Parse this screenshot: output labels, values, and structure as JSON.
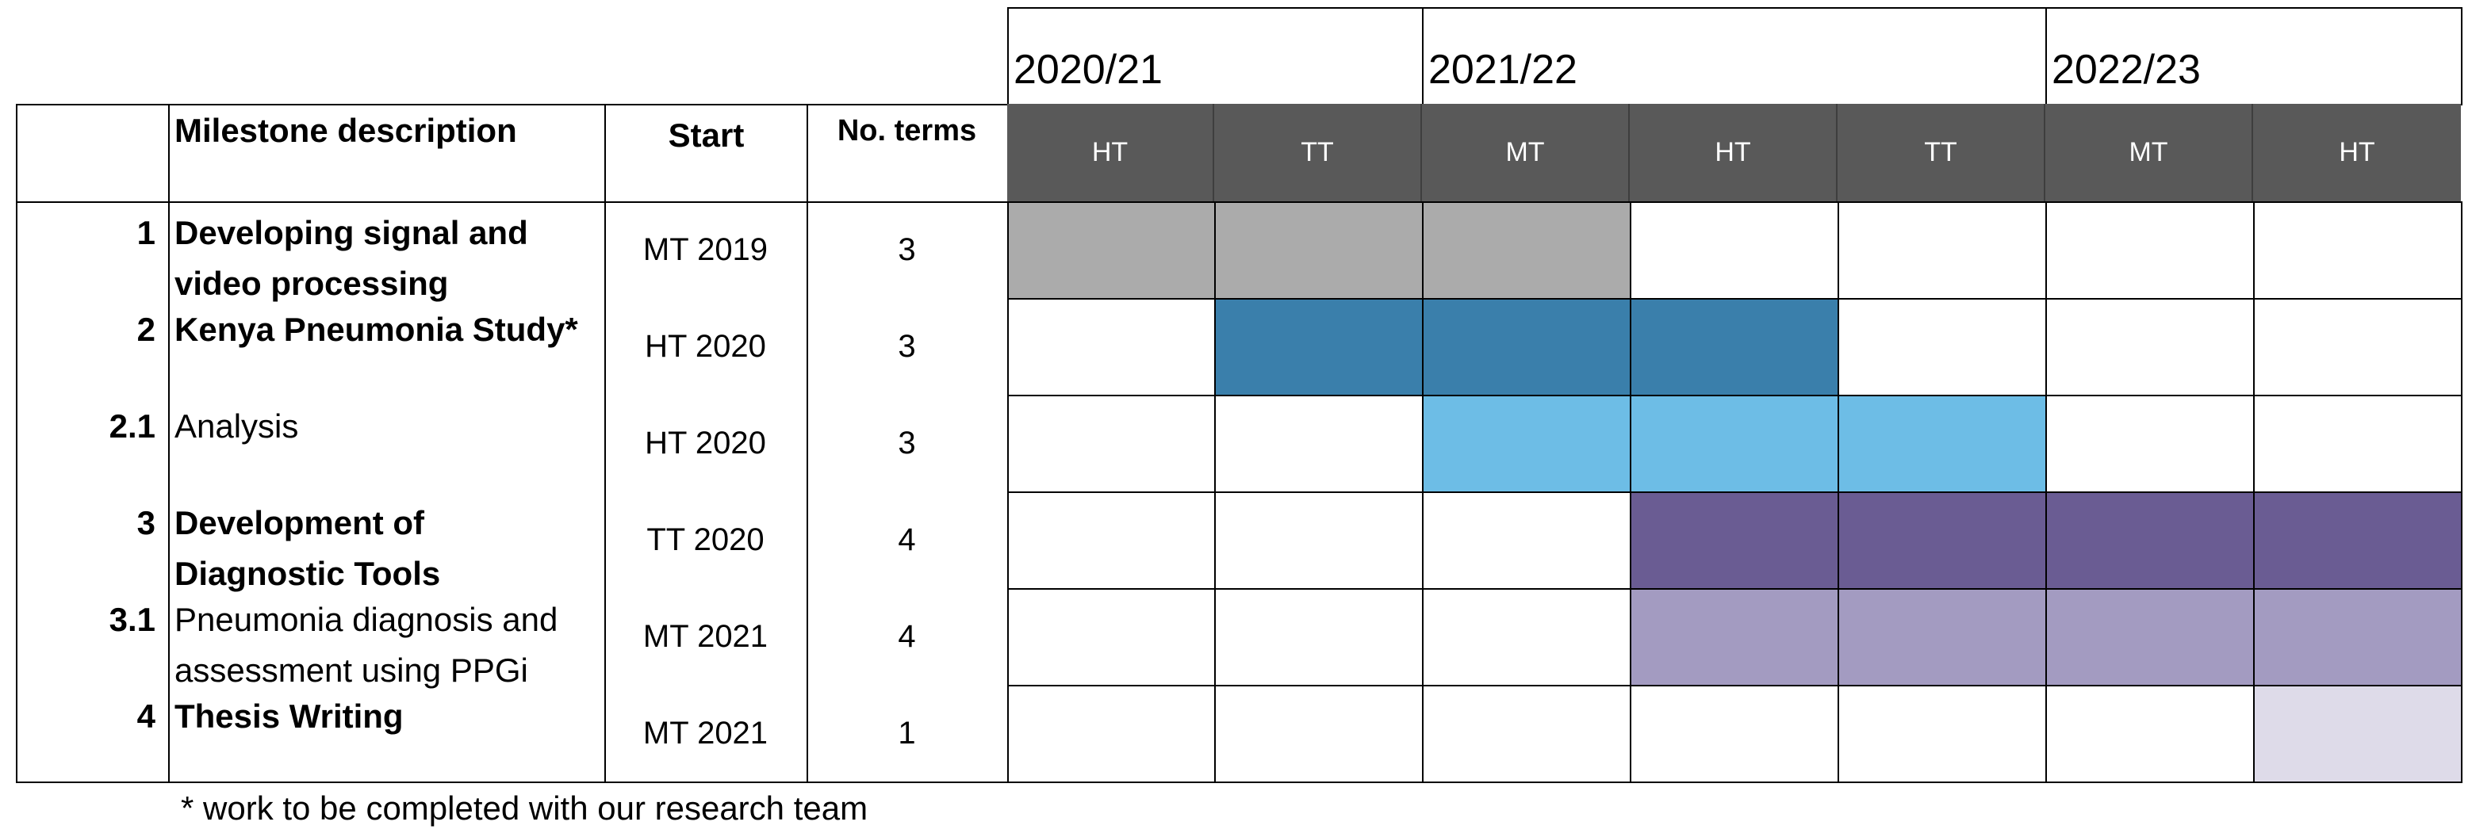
{
  "header": {
    "milestone_label": "Milestone description",
    "start_label": "Start",
    "terms_label": "No. terms"
  },
  "years": [
    {
      "label": "2020/21"
    },
    {
      "label": "2021/22"
    },
    {
      "label": "2022/23"
    }
  ],
  "terms": [
    {
      "label": "HT"
    },
    {
      "label": "TT"
    },
    {
      "label": "MT"
    },
    {
      "label": "HT"
    },
    {
      "label": "TT"
    },
    {
      "label": "MT"
    },
    {
      "label": "HT"
    }
  ],
  "milestones": [
    {
      "num": "1",
      "description": "Developing signal and video processing",
      "bold": true,
      "start": "MT 2019",
      "terms": "3",
      "color": "#ababab",
      "active": [
        0,
        1,
        2
      ]
    },
    {
      "num": "2",
      "description": "Kenya Pneumonia Study*",
      "bold": true,
      "start": "HT 2020",
      "terms": "3",
      "color": "#3a7fab",
      "active": [
        1,
        2,
        3
      ]
    },
    {
      "num": "2.1",
      "description": "Analysis",
      "bold": false,
      "start": "HT 2020",
      "terms": "3",
      "color": "#6dbde6",
      "active": [
        2,
        3,
        4
      ]
    },
    {
      "num": "3",
      "description": "Development of Diagnostic Tools",
      "bold": true,
      "start": "TT 2020",
      "terms": "4",
      "color": "#6a5c93",
      "active": [
        3,
        4,
        5,
        6
      ]
    },
    {
      "num": "3.1",
      "description": "Pneumonia diagnosis and assessment using PPGi",
      "bold": false,
      "start": "MT 2021",
      "terms": "4",
      "color": "#a39bc1",
      "active": [
        3,
        4,
        5,
        6
      ]
    },
    {
      "num": "4",
      "description": "Thesis Writing",
      "bold": true,
      "start": "MT 2021",
      "terms": "1",
      "color": "#dedbe9",
      "active": [
        6
      ]
    }
  ],
  "footnote": "* work to be completed with our research team",
  "colors": {
    "header_bg": "#595959",
    "header_text": "#ffffff",
    "grid_border": "#000000"
  }
}
